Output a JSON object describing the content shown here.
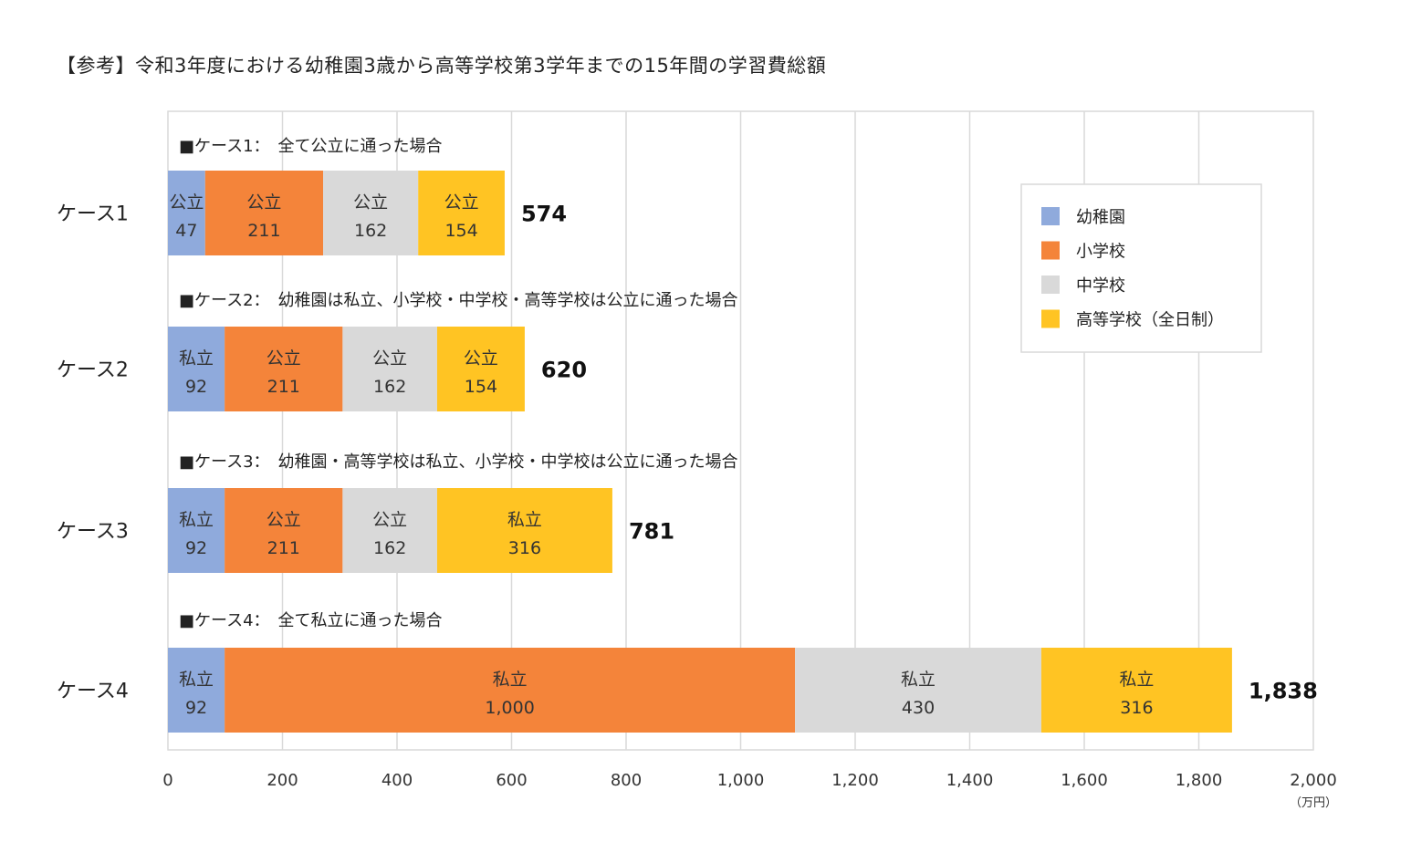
{
  "title": "【参考】令和3年度における幼稚園3歳から高等学校第3学年までの15年間の学習費総額",
  "chart_data": {
    "type": "bar",
    "orientation": "horizontal",
    "stacked": true,
    "xlim": [
      0,
      2000
    ],
    "xticks": [
      0,
      200,
      400,
      600,
      800,
      1000,
      1200,
      1400,
      1600,
      1800,
      2000
    ],
    "xtick_labels": [
      "0",
      "200",
      "400",
      "600",
      "800",
      "1,000",
      "1,200",
      "1,400",
      "1,600",
      "1,800",
      "2,000"
    ],
    "unit": "（万円）",
    "grid": true,
    "legend_position": "top-right",
    "series": [
      {
        "name": "幼稚園",
        "color": "#8faadc"
      },
      {
        "name": "小学校",
        "color": "#f4843a"
      },
      {
        "name": "中学校",
        "color": "#d9d9d9"
      },
      {
        "name": "高等学校（全日制）",
        "color": "#ffc423"
      }
    ],
    "cases": [
      {
        "label": "ケース1",
        "note": "■ケース1：　全て公立に通った場合",
        "total": "574",
        "segments": [
          {
            "type": "公立",
            "value": 47,
            "display_start": 0,
            "display_end": 65
          },
          {
            "type": "公立",
            "value": 211,
            "display_start": 65,
            "display_end": 271
          },
          {
            "type": "公立",
            "value": 162,
            "display_start": 271,
            "display_end": 437
          },
          {
            "type": "公立",
            "value": 154,
            "display_start": 437,
            "display_end": 588
          }
        ]
      },
      {
        "label": "ケース2",
        "note": "■ケース2：　幼稚園は私立、小学校・中学校・高等学校は公立に通った場合",
        "total": "620",
        "segments": [
          {
            "type": "私立",
            "value": 92,
            "display_start": 0,
            "display_end": 99
          },
          {
            "type": "公立",
            "value": 211,
            "display_start": 99,
            "display_end": 305
          },
          {
            "type": "公立",
            "value": 162,
            "display_start": 305,
            "display_end": 470
          },
          {
            "type": "公立",
            "value": 154,
            "display_start": 470,
            "display_end": 623
          }
        ]
      },
      {
        "label": "ケース3",
        "note": "■ケース3：　幼稚園・高等学校は私立、小学校・中学校は公立に通った場合",
        "total": "781",
        "segments": [
          {
            "type": "私立",
            "value": 92,
            "display_start": 0,
            "display_end": 99
          },
          {
            "type": "公立",
            "value": 211,
            "display_start": 99,
            "display_end": 305
          },
          {
            "type": "公立",
            "value": 162,
            "display_start": 305,
            "display_end": 470
          },
          {
            "type": "私立",
            "value": 316,
            "display_start": 470,
            "display_end": 776
          }
        ]
      },
      {
        "label": "ケース4",
        "note": "■ケース4：　全て私立に通った場合",
        "total": "1,838",
        "segments": [
          {
            "type": "私立",
            "value": 92,
            "display_start": 0,
            "display_end": 99
          },
          {
            "type": "私立",
            "value": 1000,
            "display_start": 99,
            "display_end": 1095
          },
          {
            "type": "私立",
            "value": 430,
            "display_start": 1095,
            "display_end": 1525
          },
          {
            "type": "私立",
            "value": 316,
            "display_start": 1525,
            "display_end": 1858
          }
        ]
      }
    ]
  }
}
